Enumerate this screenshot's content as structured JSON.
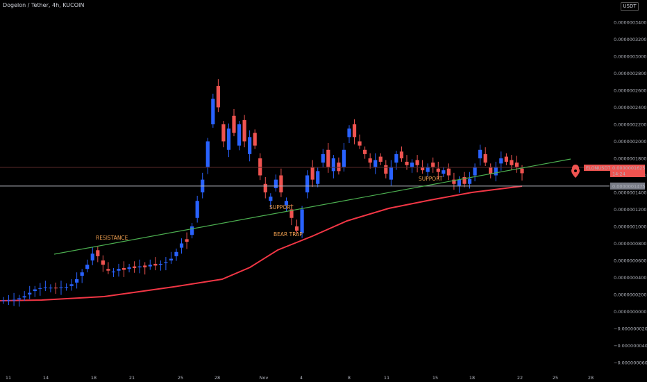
{
  "header": {
    "title": "Dogelon / Tether, 4h, KUCOIN",
    "currency_button": "USDT"
  },
  "chart_data": {
    "type": "candlestick",
    "ylim": [
      -7e-08,
      3.6e-07
    ],
    "y_ticks": [
      "0.0000003400",
      "0.0000003200",
      "0.0000003000",
      "0.0000002800",
      "0.0000002600",
      "0.0000002400",
      "0.0000002200",
      "0.0000002000",
      "0.0000001800",
      "0.0000001600",
      "0.0000001400",
      "0.0000001200",
      "0.0000001000",
      "0.0000000800",
      "0.0000000600",
      "0.0000000400",
      "0.0000000200",
      "0.0000000000",
      "−0.0000000200",
      "−0.0000000400",
      "−0.0000000600"
    ],
    "x_ticks": [
      "11",
      "14",
      "18",
      "21",
      "25",
      "28",
      "Nov",
      "4",
      "8",
      "11",
      "15",
      "18",
      "22",
      "25",
      "28"
    ],
    "price_label": {
      "symbol": "ELONUSDT",
      "value": "0.0000001625",
      "countdown": "14:24"
    },
    "level_label": "0.0000001475",
    "annotations": [
      "RESISTANCE",
      "SUPPORT",
      "BEAR TRAP",
      "SUPPORT"
    ],
    "colors": {
      "up": "#2962ff",
      "down": "#ef5350",
      "trendline": "#4caf50",
      "ma": "#f23645",
      "level": "#b2b5be"
    },
    "price_path": [
      [
        0.13,
        0.13
      ],
      [
        0.132,
        0.133
      ],
      [
        0.135,
        0.138
      ],
      [
        0.142,
        0.155
      ],
      [
        0.165,
        0.18
      ],
      [
        0.2,
        0.22
      ],
      [
        0.24,
        0.26
      ],
      [
        0.27,
        0.275
      ],
      [
        0.28,
        0.282
      ],
      [
        0.28,
        0.28
      ],
      [
        0.28,
        0.278
      ],
      [
        0.28,
        0.283
      ],
      [
        0.285,
        0.29
      ],
      [
        0.3,
        0.32
      ],
      [
        0.34,
        0.38
      ],
      [
        0.42,
        0.46
      ],
      [
        0.5,
        0.55
      ],
      [
        0.6,
        0.68
      ],
      [
        0.72,
        0.65
      ],
      [
        0.6,
        0.55
      ],
      [
        0.5,
        0.48
      ],
      [
        0.46,
        0.47
      ],
      [
        0.48,
        0.5
      ],
      [
        0.51,
        0.49
      ],
      [
        0.5,
        0.52
      ],
      [
        0.53,
        0.51
      ],
      [
        0.52,
        0.53
      ],
      [
        0.54,
        0.52
      ],
      [
        0.53,
        0.55
      ],
      [
        0.56,
        0.54
      ],
      [
        0.55,
        0.56
      ],
      [
        0.57,
        0.58
      ],
      [
        0.6,
        0.62
      ],
      [
        0.65,
        0.7
      ],
      [
        0.75,
        0.8
      ],
      [
        0.85,
        0.82
      ],
      [
        0.9,
        1.0
      ],
      [
        1.1,
        1.3
      ],
      [
        1.4,
        1.55
      ],
      [
        1.7,
        2.0
      ],
      [
        2.2,
        2.5
      ],
      [
        2.65,
        2.4
      ],
      [
        2.2,
        2.0
      ],
      [
        1.9,
        2.15
      ],
      [
        2.3,
        2.1
      ],
      [
        1.95,
        2.2
      ],
      [
        2.25,
        2.0
      ],
      [
        1.85,
        2.05
      ],
      [
        2.1,
        1.95
      ],
      [
        1.8,
        1.6
      ],
      [
        1.5,
        1.4
      ],
      [
        1.3,
        1.35
      ],
      [
        1.45,
        1.55
      ],
      [
        1.6,
        1.4
      ],
      [
        1.25,
        1.3
      ],
      [
        1.2,
        1.1
      ],
      [
        1.0,
        0.95
      ],
      [
        0.92,
        1.2
      ],
      [
        1.4,
        1.6
      ],
      [
        1.7,
        1.55
      ],
      [
        1.5,
        1.65
      ],
      [
        1.75,
        1.85
      ],
      [
        1.9,
        1.7
      ],
      [
        1.65,
        1.8
      ],
      [
        1.75,
        1.65
      ],
      [
        1.7,
        1.9
      ],
      [
        2.05,
        2.15
      ],
      [
        2.2,
        2.05
      ],
      [
        2.0,
        1.95
      ],
      [
        1.9,
        1.85
      ],
      [
        1.8,
        1.75
      ],
      [
        1.7,
        1.78
      ],
      [
        1.82,
        1.76
      ],
      [
        1.72,
        1.62
      ],
      [
        1.55,
        1.7
      ],
      [
        1.75,
        1.85
      ],
      [
        1.88,
        1.8
      ],
      [
        1.76,
        1.72
      ],
      [
        1.7,
        1.75
      ],
      [
        1.78,
        1.72
      ],
      [
        1.7,
        1.66
      ],
      [
        1.64,
        1.7
      ],
      [
        1.75,
        1.7
      ],
      [
        1.68,
        1.64
      ],
      [
        1.62,
        1.66
      ],
      [
        1.68,
        1.6
      ],
      [
        1.55,
        1.5
      ],
      [
        1.48,
        1.55
      ],
      [
        1.58,
        1.5
      ],
      [
        1.5,
        1.56
      ],
      [
        1.6,
        1.7
      ],
      [
        1.8,
        1.9
      ],
      [
        1.85,
        1.75
      ],
      [
        1.7,
        1.62
      ],
      [
        1.6,
        1.7
      ],
      [
        1.74,
        1.8
      ],
      [
        1.82,
        1.76
      ],
      [
        1.78,
        1.72
      ],
      [
        1.75,
        1.7
      ],
      [
        1.68,
        1.625
      ]
    ]
  }
}
